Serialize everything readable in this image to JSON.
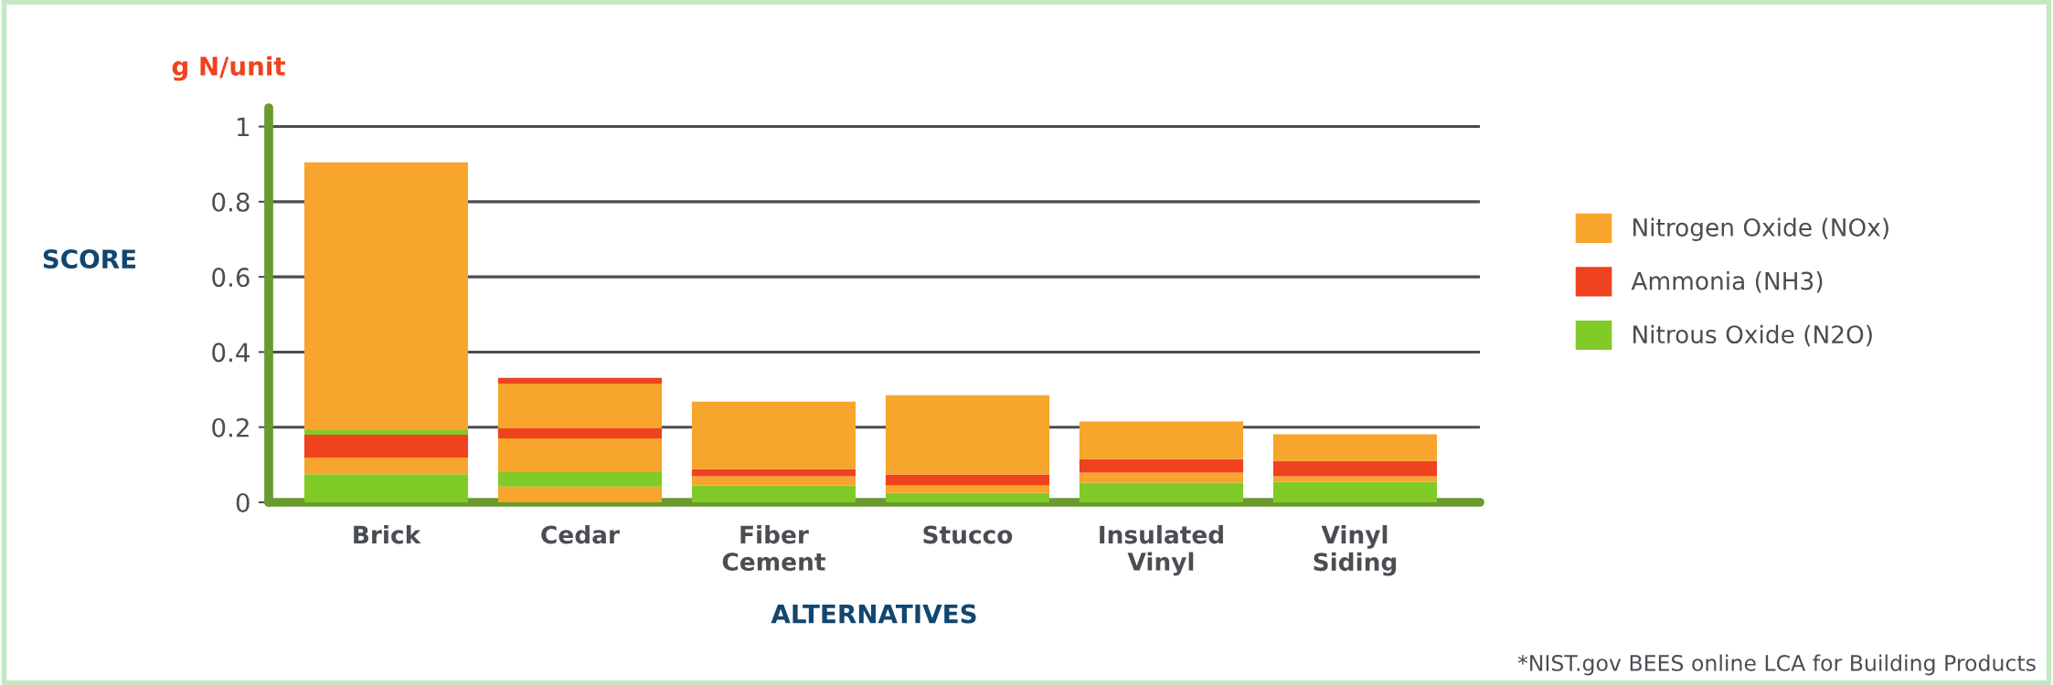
{
  "chart_data": {
    "type": "bar",
    "stacked": true,
    "ylabel": "SCORE",
    "xlabel": "ALTERNATIVES",
    "annotations": [
      "g N/unit",
      "*NIST.gov BEES online LCA for Building Products"
    ],
    "categories": [
      "Brick",
      "Cedar",
      "Fiber\nCement",
      "Stucco",
      "Insulated\nVinyl",
      "Vinyl\nSiding"
    ],
    "series": [
      {
        "color": "#f7a52c",
        "values": [
          0,
          0.042,
          0,
          0,
          0,
          0
        ]
      },
      {
        "name": "Nitrous Oxide (N2O)",
        "color": "#80cb28",
        "values": [
          0.075,
          0.038,
          0.045,
          0.025,
          0.052,
          0.054
        ]
      },
      {
        "name": "Nitrogen Oxide (NOx)",
        "color": "#f7a52c",
        "values": [
          0.044,
          0.09,
          0.024,
          0.02,
          0.027,
          0.015
        ]
      },
      {
        "name": "Ammonia (NH3)",
        "color": "#ef421e",
        "values": [
          0.061,
          0.027,
          0.019,
          0.029,
          0.036,
          0.041
        ]
      },
      {
        "color": "#80cb28",
        "values": [
          0.012,
          0,
          0,
          0,
          0,
          0
        ]
      },
      {
        "color": "#f7a52c",
        "values": [
          0.713,
          0.119,
          0.18,
          0.211,
          0.1,
          0.071
        ]
      },
      {
        "color": "#ef421e",
        "values": [
          0,
          0.015,
          0,
          0,
          0,
          0
        ]
      }
    ],
    "ylim": [
      0,
      1.05
    ],
    "yticks": [
      0,
      0.2,
      0.4,
      0.6,
      0.8,
      1
    ],
    "grid": "y",
    "legend": "right"
  }
}
